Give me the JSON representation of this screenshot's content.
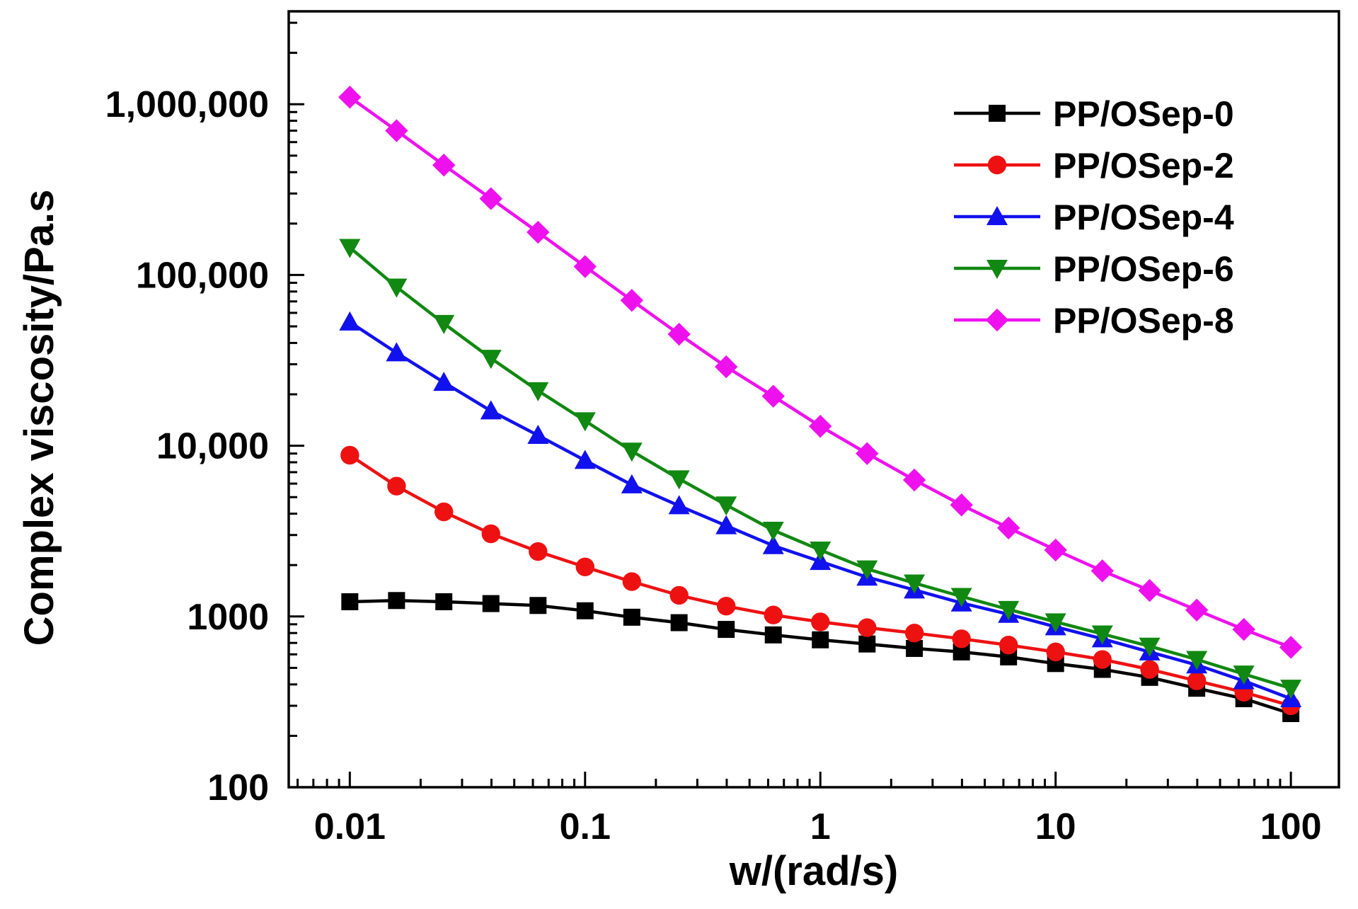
{
  "chart_data": {
    "type": "line",
    "title": "",
    "xlabel": "w/(rad/s)",
    "ylabel": "Complex viscosity/Pa.s",
    "xscale": "log",
    "yscale": "log",
    "xlim": [
      0.0055,
      160
    ],
    "ylim": [
      100,
      3500000
    ],
    "xticks": [
      {
        "value": 0.01,
        "label": "0.01"
      },
      {
        "value": 0.1,
        "label": "0.1"
      },
      {
        "value": 1,
        "label": "1"
      },
      {
        "value": 10,
        "label": "10"
      },
      {
        "value": 100,
        "label": "100"
      }
    ],
    "yticks": [
      {
        "value": 100,
        "label": "100"
      },
      {
        "value": 1000,
        "label": "1000"
      },
      {
        "value": 10000,
        "label": "10,000"
      },
      {
        "value": 100000,
        "label": "100,000"
      },
      {
        "value": 1000000,
        "label": "1,000,000"
      }
    ],
    "legend_position": "top-right",
    "grid": false,
    "x": [
      0.01,
      0.0158,
      0.0251,
      0.0398,
      0.0631,
      0.1,
      0.158,
      0.251,
      0.398,
      0.631,
      1,
      1.58,
      2.51,
      3.98,
      6.31,
      10,
      15.8,
      25.1,
      39.8,
      63.1,
      100
    ],
    "series": [
      {
        "name": "PP/OSep-0",
        "color": "#000000",
        "marker": "square",
        "values": [
          1220,
          1240,
          1220,
          1190,
          1160,
          1080,
          990,
          920,
          840,
          780,
          730,
          690,
          650,
          620,
          580,
          530,
          490,
          440,
          380,
          330,
          270
        ]
      },
      {
        "name": "PP/OSep-2",
        "color": "#ee1111",
        "marker": "circle",
        "values": [
          8800,
          5800,
          4100,
          3050,
          2400,
          1950,
          1600,
          1330,
          1150,
          1020,
          930,
          860,
          800,
          740,
          680,
          620,
          560,
          490,
          420,
          360,
          300
        ]
      },
      {
        "name": "PP/OSep-4",
        "color": "#1111ee",
        "marker": "triangle-up",
        "values": [
          53000,
          35000,
          23500,
          16000,
          11500,
          8200,
          5900,
          4450,
          3400,
          2600,
          2100,
          1700,
          1430,
          1200,
          1030,
          870,
          740,
          620,
          520,
          420,
          330
        ]
      },
      {
        "name": "PP/OSep-6",
        "color": "#118811",
        "marker": "triangle-down",
        "values": [
          145000,
          85000,
          52000,
          32500,
          21000,
          14000,
          9300,
          6400,
          4500,
          3200,
          2450,
          1900,
          1570,
          1310,
          1100,
          930,
          790,
          670,
          560,
          460,
          380
        ]
      },
      {
        "name": "PP/OSep-8",
        "color": "#ee11ee",
        "marker": "diamond",
        "values": [
          1100000,
          700000,
          440000,
          280000,
          178000,
          112000,
          71000,
          45000,
          29000,
          19500,
          13000,
          9000,
          6300,
          4500,
          3300,
          2450,
          1850,
          1420,
          1090,
          840,
          660
        ]
      }
    ]
  }
}
